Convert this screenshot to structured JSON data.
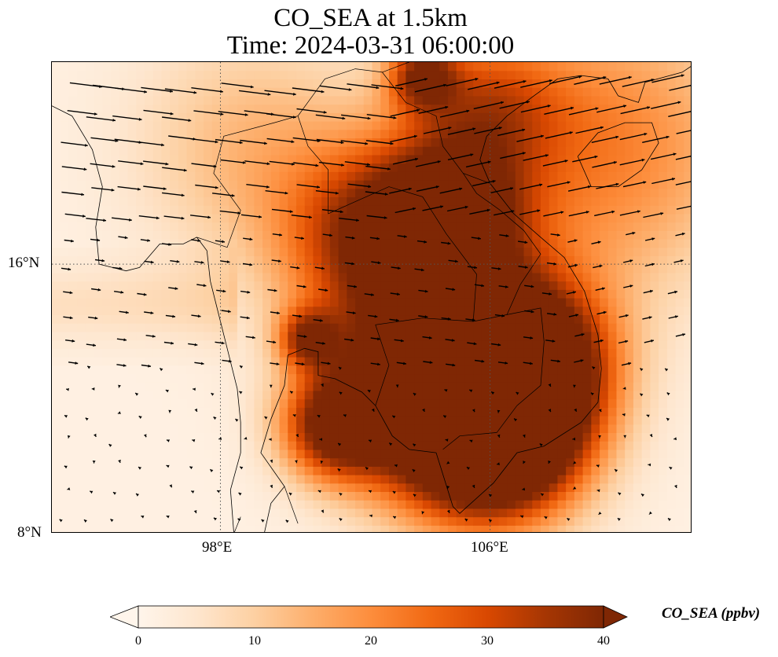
{
  "title_line1": "CO_SEA at 1.5km",
  "title_line2": "Time: 2024-03-31 06:00:00",
  "axes": {
    "lon_ticks": [
      "98°E",
      "106°E"
    ],
    "lat_ticks": [
      "16°N",
      "8°N"
    ]
  },
  "map": {
    "lon_range": [
      93,
      112
    ],
    "lat_range": [
      8,
      22
    ],
    "gridlines": "dotted",
    "field": "CO_SEA",
    "units": "ppbv",
    "hotspots": [
      {
        "lon": 105.4,
        "lat": 11.5,
        "value": 40,
        "spread": 2.2
      },
      {
        "lon": 106.4,
        "lat": 11.0,
        "value": 40,
        "spread": 1.6
      },
      {
        "lon": 104.8,
        "lat": 12.5,
        "value": 36,
        "spread": 1.8
      },
      {
        "lon": 107.4,
        "lat": 13.2,
        "value": 34,
        "spread": 1.6
      },
      {
        "lon": 101.4,
        "lat": 11.2,
        "value": 38,
        "spread": 1.1
      },
      {
        "lon": 104.8,
        "lat": 17.4,
        "value": 36,
        "spread": 1.4
      },
      {
        "lon": 102.5,
        "lat": 17.0,
        "value": 24,
        "spread": 1.8
      },
      {
        "lon": 100.6,
        "lat": 13.8,
        "value": 28,
        "spread": 0.6
      },
      {
        "lon": 105.8,
        "lat": 20.6,
        "value": 22,
        "spread": 1.6
      },
      {
        "lon": 104.0,
        "lat": 21.6,
        "value": 30,
        "spread": 0.7
      },
      {
        "lon": 109.5,
        "lat": 19.5,
        "value": 20,
        "spread": 3.0
      },
      {
        "lon": 104.0,
        "lat": 15.0,
        "value": 22,
        "spread": 2.5
      },
      {
        "lon": 99.0,
        "lat": 19.5,
        "value": 12,
        "spread": 2.5
      }
    ]
  },
  "colorbar": {
    "label": "CO_SEA (ppbv)",
    "ticks": [
      "0",
      "10",
      "20",
      "30",
      "40"
    ],
    "min": 0,
    "max": 40,
    "colors": [
      "#fff5eb",
      "#fee6ce",
      "#fdd0a2",
      "#fdae6b",
      "#fd8d3c",
      "#f16913",
      "#d94801",
      "#a63603",
      "#7f2704"
    ]
  }
}
